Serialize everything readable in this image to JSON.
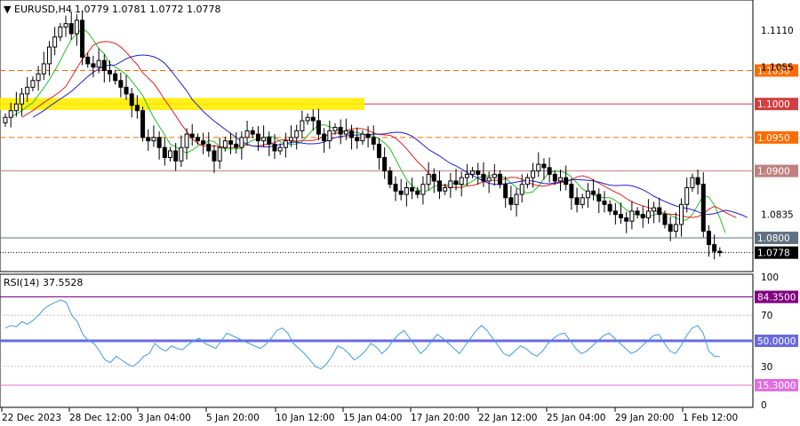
{
  "header": {
    "symbol": "EURUSD,H4",
    "ohlc": "1.0779 1.0781 1.0772 1.0778",
    "collapse_glyph": "▼"
  },
  "rsi_header": {
    "title": "RSI(14) 37.5528"
  },
  "colors": {
    "bull_body": "#ffffff",
    "bear_body": "#000000",
    "ma_fast": "#22c022",
    "ma_mid": "#e02020",
    "ma_slow": "#2020d8",
    "rsi_line": "#3d9be9",
    "highlight_zone": "#ffee00",
    "level_1050": "#ff6a00",
    "level_1000": "#d04040",
    "level_0950": "#ff6a00",
    "level_0900": "#c08080",
    "level_0800": "#607080",
    "current_price_tag": "#000000",
    "rsi_843": "#800080",
    "rsi_50": "#6a6ae0",
    "rsi_153": "#e070e0"
  },
  "chart_data": [
    {
      "type": "candlestick",
      "title": "EURUSD,H4",
      "y_axis_ticks": [
        "1.1110",
        "1.1055",
        "1.0835"
      ],
      "ylim": [
        1.0755,
        1.115
      ],
      "horizontal_levels": [
        {
          "label": "1.1050",
          "value": 1.105,
          "style": "dashed",
          "color": "#ff6a00"
        },
        {
          "label": "1.1000",
          "value": 1.1,
          "style": "solid",
          "color": "#d04040"
        },
        {
          "label": "1.0950",
          "value": 1.095,
          "style": "dashed",
          "color": "#ff6a00"
        },
        {
          "label": "1.0900",
          "value": 1.09,
          "style": "solid",
          "color": "#c08080"
        },
        {
          "label": "1.0800",
          "value": 1.08,
          "style": "solid",
          "color": "#607080"
        },
        {
          "label": "1.0778",
          "value": 1.0778,
          "style": "dotted",
          "color": "#000000"
        }
      ],
      "highlight_zone": {
        "value_from": 1.0995,
        "value_to": 1.1005
      },
      "x_axis_labels": [
        "22 Dec 2023",
        "28 Dec 12:00",
        "3 Jan 04:00",
        "5 Jan 20:00",
        "10 Jan 12:00",
        "15 Jan 04:00",
        "17 Jan 20:00",
        "22 Jan 12:00",
        "25 Jan 04:00",
        "29 Jan 20:00",
        "1 Feb 12:00"
      ],
      "series": [
        {
          "kind": "candles",
          "close_path": [
            1.098,
            1.099,
            1.1,
            1.1015,
            1.1025,
            1.1035,
            1.1045,
            1.106,
            1.1085,
            1.11,
            1.1115,
            1.112,
            1.1105,
            1.1125,
            1.107,
            1.106,
            1.1055,
            1.1065,
            1.105,
            1.1045,
            1.1035,
            1.1025,
            1.1015,
            1.0998,
            1.099,
            1.095,
            1.0945,
            1.095,
            1.0935,
            1.092,
            1.093,
            1.0915,
            1.0935,
            1.0955,
            1.095,
            1.0945,
            1.094,
            1.093,
            1.0915,
            1.0935,
            1.0945,
            1.094,
            1.0935,
            1.095,
            1.096,
            1.0955,
            1.0945,
            1.095,
            1.094,
            1.093,
            1.0935,
            1.0945,
            1.095,
            1.096,
            1.0975,
            1.098,
            1.0975,
            1.0955,
            1.0945,
            1.096,
            1.0965,
            1.0955,
            1.096,
            1.095,
            1.0945,
            1.0955,
            1.095,
            1.094,
            1.092,
            1.09,
            1.088,
            1.087,
            1.0865,
            1.0875,
            1.087,
            1.0865,
            1.088,
            1.0895,
            1.0885,
            1.087,
            1.0875,
            1.0885,
            1.088,
            1.089,
            1.0895,
            1.09,
            1.0895,
            1.0885,
            1.089,
            1.0895,
            1.088,
            1.086,
            1.085,
            1.0865,
            1.088,
            1.089,
            1.09,
            1.091,
            1.0905,
            1.0895,
            1.0885,
            1.089,
            1.088,
            1.086,
            1.085,
            1.086,
            1.087,
            1.0865,
            1.0855,
            1.085,
            1.084,
            1.0835,
            1.083,
            1.0825,
            1.084,
            1.0835,
            1.083,
            1.084,
            1.0845,
            1.0835,
            1.082,
            1.081,
            1.082,
            1.085,
            1.0875,
            1.089,
            1.088,
            1.081,
            1.079,
            1.078,
            1.0778
          ]
        }
      ]
    },
    {
      "type": "line",
      "title": "RSI(14) 37.5528",
      "y_axis_ticks": [
        "100",
        "70",
        "30",
        "0"
      ],
      "ylim": [
        0,
        100
      ],
      "horizontal_levels": [
        {
          "label": "84.3500",
          "value": 84.35,
          "color": "#800080"
        },
        {
          "label": "50.0000",
          "value": 50.0,
          "color": "#6a6ae0"
        },
        {
          "label": "15.3000",
          "value": 15.3,
          "color": "#e070e0"
        }
      ],
      "series": [
        {
          "name": "RSI(14)",
          "values": [
            60,
            62,
            61,
            65,
            63,
            66,
            70,
            75,
            78,
            80,
            82,
            80,
            70,
            65,
            55,
            50,
            48,
            42,
            35,
            33,
            38,
            35,
            32,
            30,
            33,
            38,
            40,
            48,
            44,
            42,
            46,
            44,
            43,
            47,
            50,
            52,
            48,
            46,
            44,
            50,
            56,
            54,
            52,
            50,
            48,
            46,
            44,
            47,
            52,
            58,
            60,
            56,
            48,
            44,
            40,
            35,
            30,
            28,
            32,
            38,
            46,
            44,
            40,
            35,
            38,
            42,
            48,
            45,
            40,
            44,
            50,
            55,
            58,
            52,
            46,
            40,
            44,
            50,
            55,
            52,
            48,
            44,
            40,
            46,
            52,
            58,
            62,
            58,
            52,
            46,
            40,
            38,
            42,
            46,
            44,
            40,
            38,
            42,
            48,
            52,
            55,
            56,
            50,
            44,
            40,
            42,
            46,
            50,
            54,
            56,
            52,
            48,
            44,
            40,
            42,
            46,
            50,
            54,
            55,
            48,
            42,
            40,
            46,
            54,
            60,
            62,
            56,
            42,
            38,
            37.55
          ]
        }
      ]
    }
  ]
}
